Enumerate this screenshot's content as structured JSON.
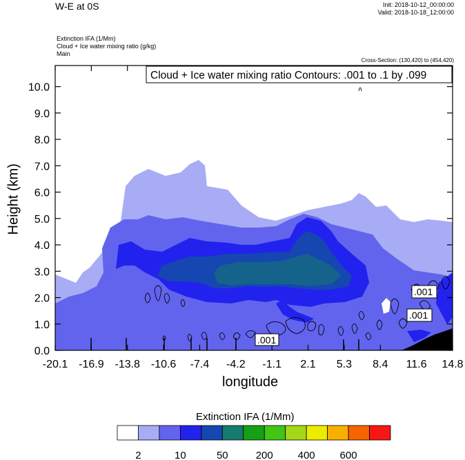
{
  "header": {
    "title": "W-E at 0S",
    "init": "Init: 2018-10-12_00:00:00",
    "valid": "Valid: 2018-10-18_12:00:00",
    "desc_lines": [
      "Extinction IFA   (1/Mm)",
      "Cloud + Ice water mixing ratio   (g/kg)",
      "Main"
    ],
    "cross_section": "Cross-Section: (130,420) to (454,420)"
  },
  "chart_data": {
    "type": "contour-filled cross-section",
    "title": "Extinction IFA  (1/Mm)",
    "contour_label": "Cloud + Ice water mixing ratio Contours: .001 to .1 by .099",
    "xlabel": "longitude",
    "ylabel": "Height (km)",
    "xlim": [
      -20.1,
      14.8
    ],
    "ylim": [
      0.0,
      10.8
    ],
    "x_ticks": [
      "-20.1",
      "-16.9",
      "-13.8",
      "-10.6",
      "-7.4",
      "-4.2",
      "-1.1",
      "2.1",
      "5.3",
      "8.4",
      "11.6",
      "14.8"
    ],
    "y_ticks": [
      "0.0",
      "1.0",
      "2.0",
      "3.0",
      "4.0",
      "5.0",
      "6.0",
      "7.0",
      "8.0",
      "9.0",
      "10.0"
    ],
    "y_tick_values": [
      0,
      1,
      2,
      3,
      4,
      5,
      6,
      7,
      8,
      9,
      10
    ],
    "contour_box_labels": [
      ".001",
      ".001",
      ".001"
    ],
    "colorbar": {
      "colors": [
        "#ffffff",
        "#a8acf4",
        "#6264ee",
        "#2222ee",
        "#1646b0",
        "#167a6e",
        "#16a016",
        "#44c416",
        "#a4d816",
        "#ecec00",
        "#f8b000",
        "#f86400",
        "#f81616"
      ],
      "labels": [
        "2",
        "10",
        "50",
        "200",
        "400",
        "600"
      ]
    }
  }
}
